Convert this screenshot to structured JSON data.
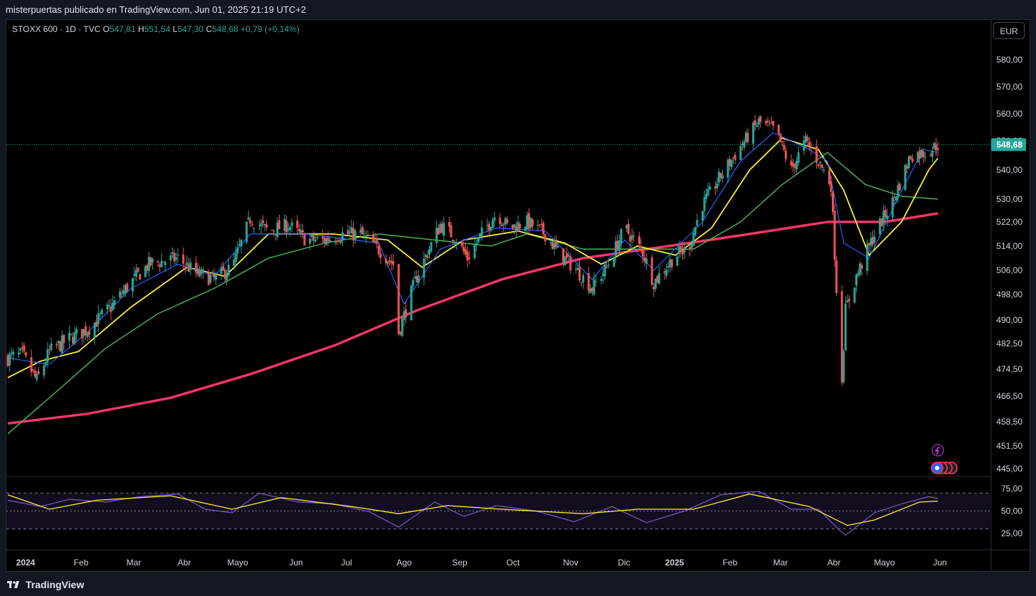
{
  "header": {
    "title": "misterpuertas publicado en TradingView.com, Jun 01, 2025 21:19 UTC+2"
  },
  "legend": {
    "symbol": "STOXX 600 · 1D · TVC",
    "o_label": "O",
    "o": "547,81",
    "h_label": "H",
    "h": "551,54",
    "l_label": "L",
    "l": "547,30",
    "c_label": "C",
    "c": "548,68",
    "change": "+0,79 (+0,14%)"
  },
  "currency_button": "EUR",
  "footer": {
    "brand": "TradingView"
  },
  "colors": {
    "up": "#26a69a",
    "down": "#ef5350",
    "ma_fast": "#2962ff",
    "ma_mid": "#ffeb3b",
    "ma_slow": "#4caf50",
    "ma_long": "#f23668",
    "rsi": "#7e57c2",
    "rsi_ma": "#ffeb3b"
  },
  "chart_data": {
    "type": "candlestick",
    "price_axis": {
      "ticks": [
        "580,00",
        "570,00",
        "560,00",
        "550,00",
        "540,00",
        "530,00",
        "522,00",
        "514,00",
        "506,00",
        "498,00",
        "490,00",
        "482,50",
        "474,50",
        "466,50",
        "458,50",
        "451,50",
        "445,00"
      ],
      "current_price": "548,68"
    },
    "x_axis": {
      "ticks": [
        "2024",
        "Feb",
        "Mar",
        "Abr",
        "Mayo",
        "Jun",
        "Jul",
        "Ago",
        "Sep",
        "Oct",
        "Nov",
        "Dic",
        "2025",
        "Feb",
        "Mar",
        "Abr",
        "Mayo",
        "Jun"
      ]
    },
    "rsi_axis": {
      "ticks": [
        "75,00",
        "50,00",
        "25,00"
      ],
      "bands": [
        70,
        50,
        30
      ]
    },
    "price_series": [
      [
        "2024-01-02",
        478
      ],
      [
        "2024-01-10",
        479
      ],
      [
        "2024-01-18",
        471
      ],
      [
        "2024-01-25",
        480
      ],
      [
        "2024-02-05",
        484
      ],
      [
        "2024-02-15",
        487
      ],
      [
        "2024-02-28",
        494
      ],
      [
        "2024-03-10",
        502
      ],
      [
        "2024-03-20",
        508
      ],
      [
        "2024-04-05",
        510
      ],
      [
        "2024-04-15",
        505
      ],
      [
        "2024-04-25",
        503
      ],
      [
        "2024-05-05",
        507
      ],
      [
        "2024-05-15",
        523
      ],
      [
        "2024-05-25",
        519
      ],
      [
        "2024-06-05",
        521
      ],
      [
        "2024-06-15",
        516
      ],
      [
        "2024-06-25",
        516
      ],
      [
        "2024-07-05",
        518
      ],
      [
        "2024-07-15",
        518
      ],
      [
        "2024-07-25",
        513
      ],
      [
        "2024-08-02",
        508
      ],
      [
        "2024-08-05",
        486
      ],
      [
        "2024-08-15",
        504
      ],
      [
        "2024-08-28",
        521
      ],
      [
        "2024-09-05",
        517
      ],
      [
        "2024-09-12",
        510
      ],
      [
        "2024-09-20",
        518
      ],
      [
        "2024-09-28",
        525
      ],
      [
        "2024-10-05",
        520
      ],
      [
        "2024-10-15",
        522
      ],
      [
        "2024-10-25",
        518
      ],
      [
        "2024-11-01",
        512
      ],
      [
        "2024-11-10",
        507
      ],
      [
        "2024-11-20",
        500
      ],
      [
        "2024-11-28",
        507
      ],
      [
        "2024-12-08",
        520
      ],
      [
        "2024-12-18",
        512
      ],
      [
        "2024-12-24",
        502
      ],
      [
        "2025-01-05",
        511
      ],
      [
        "2025-01-12",
        513
      ],
      [
        "2025-01-20",
        528
      ],
      [
        "2025-01-30",
        538
      ],
      [
        "2025-02-10",
        548
      ],
      [
        "2025-02-20",
        557
      ],
      [
        "2025-03-01",
        554
      ],
      [
        "2025-03-10",
        540
      ],
      [
        "2025-03-18",
        550
      ],
      [
        "2025-03-25",
        543
      ],
      [
        "2025-04-01",
        535
      ],
      [
        "2025-04-04",
        500
      ],
      [
        "2025-04-07",
        472
      ],
      [
        "2025-04-09",
        493
      ],
      [
        "2025-04-15",
        504
      ],
      [
        "2025-04-25",
        518
      ],
      [
        "2025-05-05",
        529
      ],
      [
        "2025-05-15",
        545
      ],
      [
        "2025-05-23",
        546
      ],
      [
        "2025-05-30",
        548.68
      ]
    ],
    "ma_fast_series": [
      [
        "2024-01-02",
        478
      ],
      [
        "2024-01-25",
        476
      ],
      [
        "2024-02-15",
        486
      ],
      [
        "2024-03-10",
        500
      ],
      [
        "2024-04-05",
        508
      ],
      [
        "2024-04-25",
        504
      ],
      [
        "2024-05-15",
        518
      ],
      [
        "2024-06-15",
        518
      ],
      [
        "2024-07-25",
        515
      ],
      [
        "2024-08-08",
        495
      ],
      [
        "2024-08-28",
        513
      ],
      [
        "2024-09-28",
        520
      ],
      [
        "2024-10-25",
        519
      ],
      [
        "2024-11-20",
        503
      ],
      [
        "2024-12-08",
        516
      ],
      [
        "2024-12-24",
        506
      ],
      [
        "2025-01-20",
        522
      ],
      [
        "2025-02-10",
        543
      ],
      [
        "2025-02-28",
        553
      ],
      [
        "2025-03-20",
        547
      ],
      [
        "2025-03-30",
        543
      ],
      [
        "2025-04-08",
        515
      ],
      [
        "2025-04-22",
        510
      ],
      [
        "2025-05-10",
        533
      ],
      [
        "2025-05-22",
        547
      ],
      [
        "2025-05-30",
        546
      ]
    ],
    "ma_mid_series": [
      [
        "2024-01-02",
        472
      ],
      [
        "2024-01-20",
        477
      ],
      [
        "2024-02-10",
        480
      ],
      [
        "2024-03-10",
        494
      ],
      [
        "2024-04-10",
        507
      ],
      [
        "2024-05-01",
        504
      ],
      [
        "2024-05-25",
        518
      ],
      [
        "2024-06-30",
        518
      ],
      [
        "2024-07-30",
        516
      ],
      [
        "2024-08-18",
        507
      ],
      [
        "2024-09-10",
        516
      ],
      [
        "2024-10-10",
        519
      ],
      [
        "2024-11-05",
        515
      ],
      [
        "2024-11-25",
        508
      ],
      [
        "2024-12-15",
        514
      ],
      [
        "2025-01-05",
        511
      ],
      [
        "2025-01-25",
        520
      ],
      [
        "2025-02-15",
        540
      ],
      [
        "2025-03-05",
        551
      ],
      [
        "2025-03-25",
        547
      ],
      [
        "2025-04-08",
        533
      ],
      [
        "2025-04-22",
        511
      ],
      [
        "2025-05-10",
        522
      ],
      [
        "2025-05-25",
        540
      ],
      [
        "2025-05-30",
        544
      ]
    ],
    "ma_slow_series": [
      [
        "2024-01-02",
        455
      ],
      [
        "2024-01-25",
        466
      ],
      [
        "2024-02-25",
        481
      ],
      [
        "2024-03-25",
        492
      ],
      [
        "2024-04-25",
        500
      ],
      [
        "2024-05-25",
        510
      ],
      [
        "2024-06-25",
        515
      ],
      [
        "2024-07-25",
        518
      ],
      [
        "2024-08-25",
        516
      ],
      [
        "2024-09-25",
        514
      ],
      [
        "2024-10-15",
        518
      ],
      [
        "2024-11-15",
        513
      ],
      [
        "2024-12-15",
        513
      ],
      [
        "2025-01-15",
        513
      ],
      [
        "2025-02-10",
        522
      ],
      [
        "2025-03-05",
        535
      ],
      [
        "2025-03-30",
        546
      ],
      [
        "2025-04-20",
        535
      ],
      [
        "2025-05-10",
        531
      ],
      [
        "2025-05-30",
        530
      ]
    ],
    "ma_long_series": [
      [
        "2024-01-02",
        458
      ],
      [
        "2024-02-15",
        461
      ],
      [
        "2024-04-01",
        466
      ],
      [
        "2024-05-15",
        473
      ],
      [
        "2024-07-01",
        482
      ],
      [
        "2024-08-15",
        493
      ],
      [
        "2024-10-01",
        503
      ],
      [
        "2024-11-15",
        510
      ],
      [
        "2025-01-01",
        514
      ],
      [
        "2025-02-15",
        518
      ],
      [
        "2025-03-30",
        522
      ],
      [
        "2025-05-01",
        522
      ],
      [
        "2025-05-30",
        525
      ]
    ],
    "rsi_series": [
      [
        "2024-01-02",
        62
      ],
      [
        "2024-01-20",
        55
      ],
      [
        "2024-02-05",
        63
      ],
      [
        "2024-02-25",
        60
      ],
      [
        "2024-03-15",
        66
      ],
      [
        "2024-04-05",
        69
      ],
      [
        "2024-04-20",
        52
      ],
      [
        "2024-05-05",
        48
      ],
      [
        "2024-05-20",
        70
      ],
      [
        "2024-06-10",
        60
      ],
      [
        "2024-06-30",
        58
      ],
      [
        "2024-07-20",
        49
      ],
      [
        "2024-08-05",
        32
      ],
      [
        "2024-08-25",
        60
      ],
      [
        "2024-09-10",
        44
      ],
      [
        "2024-09-28",
        56
      ],
      [
        "2024-10-20",
        50
      ],
      [
        "2024-11-10",
        38
      ],
      [
        "2024-12-01",
        55
      ],
      [
        "2024-12-20",
        37
      ],
      [
        "2025-01-10",
        50
      ],
      [
        "2025-01-30",
        68
      ],
      [
        "2025-02-20",
        72
      ],
      [
        "2025-03-10",
        52
      ],
      [
        "2025-03-25",
        52
      ],
      [
        "2025-04-05",
        30
      ],
      [
        "2025-04-09",
        23
      ],
      [
        "2025-04-25",
        48
      ],
      [
        "2025-05-10",
        58
      ],
      [
        "2025-05-25",
        66
      ],
      [
        "2025-05-30",
        64
      ]
    ],
    "rsi_ma_series": [
      [
        "2024-01-02",
        68
      ],
      [
        "2024-01-25",
        52
      ],
      [
        "2024-02-20",
        62
      ],
      [
        "2024-04-01",
        67
      ],
      [
        "2024-05-05",
        52
      ],
      [
        "2024-06-01",
        65
      ],
      [
        "2024-07-10",
        55
      ],
      [
        "2024-08-05",
        47
      ],
      [
        "2024-09-01",
        56
      ],
      [
        "2024-10-01",
        52
      ],
      [
        "2024-11-15",
        47
      ],
      [
        "2024-12-15",
        52
      ],
      [
        "2025-01-15",
        52
      ],
      [
        "2025-02-15",
        69
      ],
      [
        "2025-03-20",
        55
      ],
      [
        "2025-04-10",
        34
      ],
      [
        "2025-04-25",
        40
      ],
      [
        "2025-05-20",
        60
      ],
      [
        "2025-05-30",
        61
      ]
    ]
  }
}
